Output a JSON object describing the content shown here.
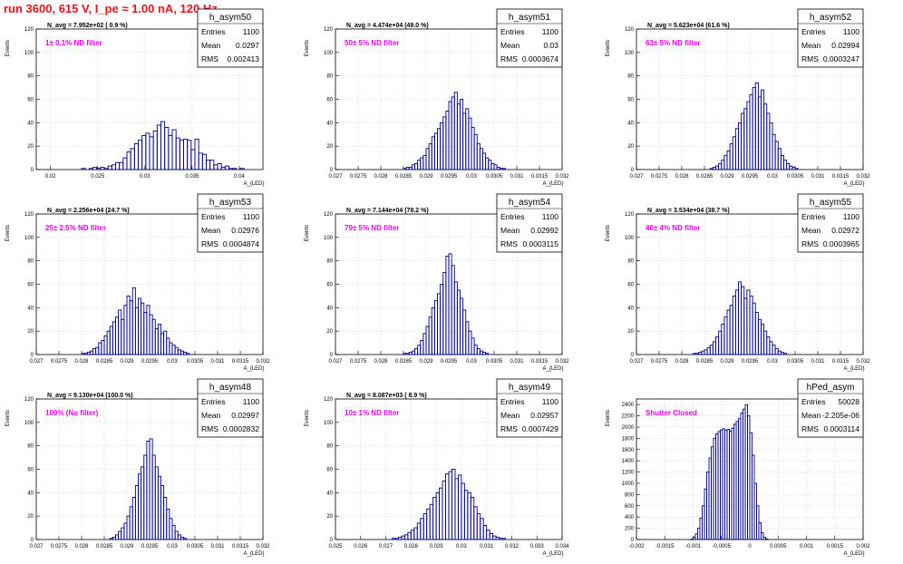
{
  "header": {
    "title": "run 3600,   615 V, I_pe ≈ 1.00 nA, 120 Hz"
  },
  "style": {
    "hist_color": "#000080",
    "annotation_color": "#e800e8",
    "header_color": "#e8141c",
    "grid_color": "#c8c8c8"
  },
  "chart_data": [
    {
      "type": "bar",
      "name": "h_asym50",
      "title": "N_avg = 7.952e+02 ( 0.9 %)",
      "annotation": "1± 0.1% ND filter",
      "stats": [
        [
          "Entries",
          "1100"
        ],
        [
          "Mean",
          "0.0297"
        ],
        [
          "RMS",
          "0.002413"
        ]
      ],
      "xlabel": "A_{LED}",
      "ylabel": "Events",
      "xlim": [
        0.0185,
        0.0425
      ],
      "ylim": [
        0,
        120
      ],
      "xticks": [
        0.02,
        0.025,
        0.03,
        0.035,
        0.04
      ],
      "xticklabels": [
        "0.02",
        "0.025",
        "0.03",
        "0.035",
        "0.04"
      ],
      "yticks": [
        0,
        20,
        40,
        60,
        80,
        100,
        120
      ],
      "bins": {
        "start": 0.0185,
        "width": 0.0004
      },
      "values": [
        0,
        0,
        0,
        0,
        0,
        0,
        0,
        0,
        0,
        0,
        0,
        0,
        1,
        0,
        1,
        2,
        1,
        2,
        1,
        3,
        4,
        6,
        6,
        10,
        15,
        18,
        22,
        25,
        29,
        31,
        28,
        33,
        38,
        41,
        36,
        29,
        34,
        27,
        25,
        26,
        25,
        17,
        26,
        14,
        13,
        8,
        8,
        4,
        5,
        2,
        3,
        1,
        1,
        0,
        1,
        0,
        0,
        0,
        0,
        0
      ]
    },
    {
      "type": "bar",
      "name": "h_asym51",
      "title": "N_avg = 4.474e+04 (49.0 %)",
      "annotation": "50± 5% ND filter",
      "stats": [
        [
          "Entries",
          "1100"
        ],
        [
          "Mean",
          "0.03"
        ],
        [
          "RMS",
          "0.0003674"
        ]
      ],
      "xlabel": "A_{LED}",
      "ylabel": "Events",
      "xlim": [
        0.027,
        0.032
      ],
      "ylim": [
        0,
        120
      ],
      "xticks": [
        0.027,
        0.0275,
        0.028,
        0.0285,
        0.029,
        0.0295,
        0.03,
        0.0305,
        0.031,
        0.0315,
        0.032
      ],
      "xticklabels": [
        "0.027",
        "0.0275",
        "0.028",
        "0.0285",
        "0.029",
        "0.0295",
        "0.03",
        "0.0305",
        "0.031",
        "0.0315",
        "0.032"
      ],
      "yticks": [
        0,
        20,
        40,
        60,
        80,
        100,
        120
      ],
      "bins": {
        "start": 0.027,
        "width": 6.25e-05
      },
      "values": [
        0,
        0,
        0,
        0,
        0,
        0,
        0,
        0,
        0,
        0,
        0,
        0,
        0,
        0,
        0,
        0,
        0,
        0,
        0,
        0,
        0,
        0,
        0,
        0,
        1,
        2,
        2,
        4,
        5,
        8,
        10,
        12,
        18,
        22,
        28,
        31,
        35,
        40,
        45,
        50,
        58,
        62,
        66,
        56,
        60,
        48,
        52,
        44,
        36,
        30,
        22,
        18,
        14,
        10,
        8,
        5,
        4,
        2,
        1,
        1,
        0,
        0,
        0,
        0,
        0,
        0,
        0,
        0,
        0,
        0,
        0,
        0,
        0,
        0,
        0,
        0,
        0,
        0,
        0,
        0
      ]
    },
    {
      "type": "bar",
      "name": "h_asym52",
      "title": "N_avg = 5.623e+04 (61.6 %)",
      "annotation": "63± 5% ND filter",
      "stats": [
        [
          "Entries",
          "1100"
        ],
        [
          "Mean",
          "0.02994"
        ],
        [
          "RMS",
          "0.0003247"
        ]
      ],
      "xlabel": "A_{LED}",
      "ylabel": "Events",
      "xlim": [
        0.027,
        0.032
      ],
      "ylim": [
        0,
        120
      ],
      "xticks": [
        0.027,
        0.0275,
        0.028,
        0.0285,
        0.029,
        0.0295,
        0.03,
        0.0305,
        0.031,
        0.0315,
        0.032
      ],
      "xticklabels": [
        "0.027",
        "0.0275",
        "0.028",
        "0.0285",
        "0.029",
        "0.0295",
        "0.03",
        "0.0305",
        "0.031",
        "0.0315",
        "0.032"
      ],
      "yticks": [
        0,
        20,
        40,
        60,
        80,
        100,
        120
      ],
      "bins": {
        "start": 0.027,
        "width": 6.25e-05
      },
      "values": [
        0,
        0,
        0,
        0,
        0,
        0,
        0,
        0,
        0,
        0,
        0,
        0,
        0,
        0,
        0,
        0,
        0,
        0,
        0,
        0,
        0,
        0,
        0,
        0,
        0,
        0,
        1,
        2,
        3,
        5,
        8,
        12,
        16,
        22,
        28,
        35,
        40,
        48,
        52,
        58,
        64,
        70,
        74,
        62,
        68,
        56,
        48,
        40,
        30,
        24,
        18,
        12,
        8,
        5,
        3,
        2,
        1,
        0,
        0,
        0,
        0,
        0,
        0,
        0,
        0,
        0,
        0,
        0,
        0,
        0,
        0,
        0,
        0,
        0,
        0,
        0,
        0,
        0,
        0,
        0
      ]
    },
    {
      "type": "bar",
      "name": "h_asym53",
      "title": "N_avg = 2.256e+04 (24.7 %)",
      "annotation": "25± 2.5% ND filter",
      "stats": [
        [
          "Entries",
          "1100"
        ],
        [
          "Mean",
          "0.02976"
        ],
        [
          "RMS",
          "0.0004874"
        ]
      ],
      "xlabel": "A_{LED}",
      "ylabel": "Events",
      "xlim": [
        0.027,
        0.032
      ],
      "ylim": [
        0,
        120
      ],
      "xticks": [
        0.027,
        0.0275,
        0.028,
        0.0285,
        0.029,
        0.0295,
        0.03,
        0.0305,
        0.031,
        0.0315,
        0.032
      ],
      "xticklabels": [
        "0.027",
        "0.0275",
        "0.028",
        "0.0285",
        "0.029",
        "0.0295",
        "0.03",
        "0.0305",
        "0.031",
        "0.0315",
        "0.032"
      ],
      "yticks": [
        0,
        20,
        40,
        60,
        80,
        100,
        120
      ],
      "bins": {
        "start": 0.027,
        "width": 6.25e-05
      },
      "values": [
        0,
        0,
        0,
        0,
        0,
        0,
        0,
        0,
        0,
        0,
        0,
        0,
        0,
        0,
        0,
        0,
        1,
        1,
        2,
        3,
        5,
        6,
        10,
        12,
        16,
        20,
        24,
        28,
        32,
        38,
        30,
        42,
        50,
        46,
        57,
        40,
        48,
        44,
        36,
        42,
        34,
        30,
        22,
        26,
        18,
        20,
        14,
        10,
        8,
        6,
        4,
        3,
        2,
        1,
        0,
        0,
        0,
        0,
        0,
        0,
        0,
        0,
        0,
        0,
        0,
        0,
        0,
        0,
        0,
        0,
        0,
        0,
        0,
        0,
        0,
        0,
        0,
        0,
        0,
        0
      ]
    },
    {
      "type": "bar",
      "name": "h_asym54",
      "title": "N_avg = 7.144e+04 (78.2 %)",
      "annotation": "79± 5% ND filter",
      "stats": [
        [
          "Entries",
          "1100"
        ],
        [
          "Mean",
          "0.02992"
        ],
        [
          "RMS",
          "0.0003115"
        ]
      ],
      "xlabel": "A_{LED}",
      "ylabel": "Events",
      "xlim": [
        0.027,
        0.032
      ],
      "ylim": [
        0,
        120
      ],
      "xticks": [
        0.027,
        0.0275,
        0.028,
        0.0285,
        0.029,
        0.0295,
        0.03,
        0.0305,
        0.031,
        0.0315,
        0.032
      ],
      "xticklabels": [
        "0.027",
        "0.0275",
        "0.028",
        "0.0285",
        "0.029",
        "0.0295",
        "0.03",
        "0.0305",
        "0.031",
        "0.0315",
        "0.032"
      ],
      "yticks": [
        0,
        20,
        40,
        60,
        80,
        100,
        120
      ],
      "bins": {
        "start": 0.027,
        "width": 6.25e-05
      },
      "values": [
        0,
        0,
        0,
        0,
        0,
        0,
        0,
        0,
        0,
        0,
        0,
        0,
        0,
        0,
        0,
        0,
        0,
        0,
        0,
        0,
        0,
        0,
        0,
        0,
        1,
        1,
        2,
        3,
        5,
        8,
        12,
        18,
        24,
        32,
        40,
        46,
        52,
        60,
        70,
        84,
        86,
        76,
        62,
        55,
        48,
        38,
        28,
        20,
        14,
        8,
        5,
        3,
        2,
        1,
        0,
        0,
        0,
        0,
        0,
        0,
        0,
        0,
        0,
        0,
        0,
        0,
        0,
        0,
        0,
        0,
        0,
        0,
        0,
        0,
        0,
        0,
        0,
        0,
        0,
        0
      ]
    },
    {
      "type": "bar",
      "name": "h_asym55",
      "title": "N_avg = 3.534e+04 (38.7 %)",
      "annotation": "40± 4% ND filter",
      "stats": [
        [
          "Entries",
          "1100"
        ],
        [
          "Mean",
          "0.02972"
        ],
        [
          "RMS",
          "0.0003965"
        ]
      ],
      "xlabel": "A_{LED}",
      "ylabel": "Events",
      "xlim": [
        0.027,
        0.032
      ],
      "ylim": [
        0,
        120
      ],
      "xticks": [
        0.027,
        0.0275,
        0.028,
        0.0285,
        0.029,
        0.0295,
        0.03,
        0.0305,
        0.031,
        0.0315,
        0.032
      ],
      "xticklabels": [
        "0.027",
        "0.0275",
        "0.028",
        "0.0285",
        "0.029",
        "0.0295",
        "0.03",
        "0.0305",
        "0.031",
        "0.0315",
        "0.032"
      ],
      "yticks": [
        0,
        20,
        40,
        60,
        80,
        100,
        120
      ],
      "bins": {
        "start": 0.027,
        "width": 6.25e-05
      },
      "values": [
        0,
        0,
        0,
        0,
        0,
        0,
        0,
        0,
        0,
        0,
        0,
        0,
        0,
        0,
        0,
        0,
        0,
        0,
        0,
        0,
        1,
        1,
        2,
        3,
        4,
        6,
        8,
        11,
        15,
        20,
        26,
        32,
        38,
        42,
        50,
        55,
        62,
        58,
        48,
        55,
        50,
        44,
        36,
        30,
        26,
        20,
        15,
        11,
        8,
        5,
        3,
        2,
        1,
        0,
        0,
        0,
        0,
        0,
        0,
        0,
        0,
        0,
        0,
        0,
        0,
        0,
        0,
        0,
        0,
        0,
        0,
        0,
        0,
        0,
        0,
        0,
        0,
        0,
        0,
        0
      ]
    },
    {
      "type": "bar",
      "name": "h_asym48",
      "title": "N_avg = 9.130e+04 (100.0 %)",
      "annotation": "100% (No filter)",
      "stats": [
        [
          "Entries",
          "1100"
        ],
        [
          "Mean",
          "0.02997"
        ],
        [
          "RMS",
          "0.0002832"
        ]
      ],
      "xlabel": "A_{LED}",
      "ylabel": "Events",
      "xlim": [
        0.027,
        0.032
      ],
      "ylim": [
        0,
        120
      ],
      "xticks": [
        0.027,
        0.0275,
        0.028,
        0.0285,
        0.029,
        0.0295,
        0.03,
        0.0305,
        0.031,
        0.0315,
        0.032
      ],
      "xticklabels": [
        "0.027",
        "0.0275",
        "0.028",
        "0.0285",
        "0.029",
        "0.0295",
        "0.03",
        "0.0305",
        "0.031",
        "0.0315",
        "0.032"
      ],
      "yticks": [
        0,
        20,
        40,
        60,
        80,
        100,
        120
      ],
      "bins": {
        "start": 0.027,
        "width": 6.25e-05
      },
      "values": [
        0,
        0,
        0,
        0,
        0,
        0,
        0,
        0,
        0,
        0,
        0,
        0,
        0,
        0,
        0,
        0,
        0,
        0,
        0,
        0,
        0,
        0,
        0,
        0,
        0,
        0,
        1,
        2,
        4,
        7,
        10,
        14,
        20,
        28,
        36,
        46,
        56,
        62,
        72,
        84,
        86,
        72,
        62,
        54,
        46,
        36,
        26,
        18,
        12,
        7,
        4,
        2,
        1,
        0,
        0,
        0,
        0,
        0,
        0,
        0,
        0,
        0,
        0,
        0,
        0,
        0,
        0,
        0,
        0,
        0,
        0,
        0,
        0,
        0,
        0,
        0,
        0,
        0,
        0,
        0
      ]
    },
    {
      "type": "bar",
      "name": "h_asym49",
      "title": "N_avg = 8.087e+03 ( 8.9 %)",
      "annotation": "10± 1% ND filter",
      "stats": [
        [
          "Entries",
          "1100"
        ],
        [
          "Mean",
          "0.02957"
        ],
        [
          "RMS",
          "0.0007429"
        ]
      ],
      "xlabel": "A_{LED}",
      "ylabel": "Events",
      "xlim": [
        0.025,
        0.034
      ],
      "ylim": [
        0,
        120
      ],
      "xticks": [
        0.025,
        0.026,
        0.027,
        0.028,
        0.029,
        0.03,
        0.031,
        0.032,
        0.033,
        0.034
      ],
      "xticklabels": [
        "0.025",
        "0.026",
        "0.027",
        "0.028",
        "0.029",
        "0.03",
        "0.031",
        "0.032",
        "0.033",
        "0.034"
      ],
      "yticks": [
        0,
        20,
        40,
        60,
        80,
        100,
        120
      ],
      "bins": {
        "start": 0.025,
        "width": 0.000125
      },
      "values": [
        0,
        0,
        0,
        0,
        0,
        0,
        0,
        0,
        0,
        0,
        0,
        0,
        0,
        0,
        0,
        0,
        0,
        0,
        1,
        1,
        2,
        3,
        4,
        6,
        8,
        10,
        14,
        18,
        22,
        26,
        30,
        36,
        40,
        44,
        50,
        56,
        58,
        60,
        52,
        55,
        48,
        42,
        40,
        36,
        28,
        22,
        18,
        12,
        8,
        5,
        3,
        2,
        1,
        1,
        0,
        0,
        0,
        0,
        0,
        0,
        0,
        0,
        0,
        0,
        0,
        0,
        0,
        0,
        0,
        0,
        0,
        0
      ]
    },
    {
      "type": "bar",
      "name": "hPed_asym",
      "title": "",
      "annotation": "Shutter Closed",
      "stats": [
        [
          "Entries",
          "50028"
        ],
        [
          "Mean",
          "-2.205e-06"
        ],
        [
          "RMS",
          "0.0003114"
        ]
      ],
      "xlabel": "A_{LED}",
      "ylabel": "Events",
      "xlim": [
        -0.002,
        0.002
      ],
      "ylim": [
        0,
        2500
      ],
      "xticks": [
        -0.002,
        -0.0015,
        -0.001,
        -0.0005,
        0,
        0.0005,
        0.001,
        0.0015,
        0.002
      ],
      "xticklabels": [
        "-0.002",
        "-0.0015",
        "-0.001",
        "-0.0005",
        "0",
        "0.0005",
        "0.001",
        "0.0015",
        "0.002"
      ],
      "yticks": [
        0,
        200,
        400,
        600,
        800,
        1000,
        1200,
        1400,
        1600,
        1800,
        2000,
        2200,
        2400
      ],
      "bins": {
        "start": -0.002,
        "width": 4e-05
      },
      "values": [
        0,
        0,
        0,
        0,
        0,
        0,
        0,
        0,
        0,
        0,
        0,
        0,
        0,
        0,
        0,
        0,
        0,
        0,
        0,
        0,
        0,
        0,
        0,
        0,
        10,
        40,
        100,
        200,
        380,
        600,
        900,
        1200,
        1450,
        1650,
        1800,
        1880,
        1920,
        1950,
        1970,
        1940,
        1960,
        1930,
        1980,
        2050,
        2100,
        2150,
        2250,
        2320,
        2400,
        2200,
        1900,
        1500,
        1000,
        600,
        300,
        120,
        40,
        10,
        0,
        0,
        0,
        0,
        0,
        0,
        0,
        0,
        0,
        0,
        0,
        0,
        0,
        0,
        0,
        0,
        0,
        0,
        0,
        0,
        0,
        0,
        0,
        0,
        0,
        0,
        0,
        0,
        0,
        0,
        0,
        0,
        0,
        0,
        0,
        0,
        0,
        0,
        0,
        0,
        0,
        0,
        0
      ]
    }
  ]
}
